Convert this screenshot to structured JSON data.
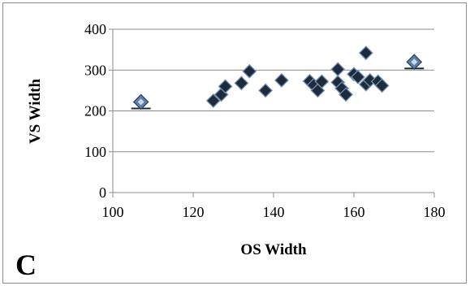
{
  "chart_data": {
    "type": "scatter",
    "panel_label": "C",
    "xlabel": "OS Width",
    "ylabel": "VS Width",
    "xlim": [
      100,
      180
    ],
    "ylim": [
      0,
      400
    ],
    "x_ticks": [
      "100",
      "120",
      "140",
      "160",
      "180"
    ],
    "y_ticks": [
      "0",
      "100",
      "200",
      "300",
      "400"
    ],
    "grid": "horizontal",
    "series": [
      {
        "values": [
          [
            125,
            225
          ],
          [
            127,
            240
          ],
          [
            128,
            260
          ],
          [
            132,
            268
          ],
          [
            134,
            297
          ],
          [
            138,
            250
          ],
          [
            142,
            275
          ],
          [
            149,
            273
          ],
          [
            150,
            263
          ],
          [
            151,
            250
          ],
          [
            152,
            272
          ],
          [
            156,
            302
          ],
          [
            156,
            270
          ],
          [
            157,
            255
          ],
          [
            158,
            240
          ],
          [
            160,
            290
          ],
          [
            161,
            283
          ],
          [
            163,
            342
          ],
          [
            163,
            265
          ],
          [
            164,
            275
          ],
          [
            166,
            272
          ],
          [
            167,
            262
          ]
        ],
        "color": "#1f2a3a"
      }
    ],
    "highlight_points": [
      [
        107,
        222
      ],
      [
        175,
        320
      ]
    ],
    "highlight_color": "#5a7fa8"
  }
}
